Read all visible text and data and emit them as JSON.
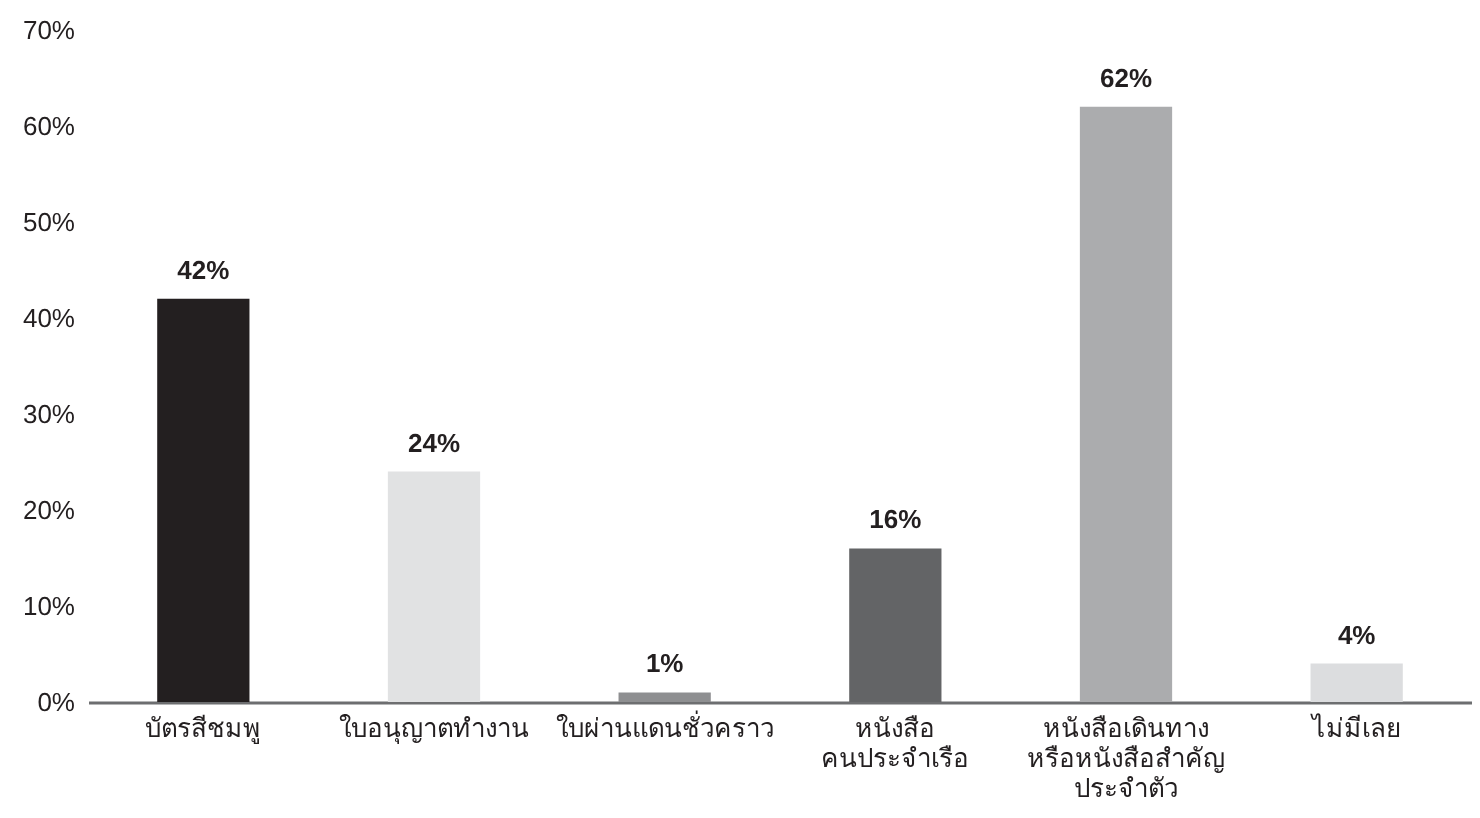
{
  "chart_data": {
    "type": "bar",
    "categories": [
      "บัตรสีชมพู",
      "ใบอนุญาตทำงาน",
      "ใบผ่านแดนชั่วคราว",
      "หนังสือ\nคนประจำเรือ",
      "หนังสือเดินทาง\nหรือหนังสือสำคัญ\nประจำตัว",
      "ไม่มีเลย"
    ],
    "values": [
      42,
      24,
      1,
      16,
      62,
      4
    ],
    "colors": [
      "#231f20",
      "#e1e2e3",
      "#8e8f91",
      "#636466",
      "#abacae",
      "#dcdddf"
    ],
    "value_labels": [
      "42%",
      "24%",
      "1%",
      "16%",
      "62%",
      "4%"
    ],
    "ylim": [
      0,
      70
    ],
    "yticks": [
      {
        "value": 0,
        "label": "0%"
      },
      {
        "value": 10,
        "label": "10%"
      },
      {
        "value": 20,
        "label": "20%"
      },
      {
        "value": 30,
        "label": "30%"
      },
      {
        "value": 40,
        "label": "40%"
      },
      {
        "value": 50,
        "label": "50%"
      },
      {
        "value": 60,
        "label": "60%"
      },
      {
        "value": 70,
        "label": "70%"
      }
    ],
    "grid": false
  }
}
